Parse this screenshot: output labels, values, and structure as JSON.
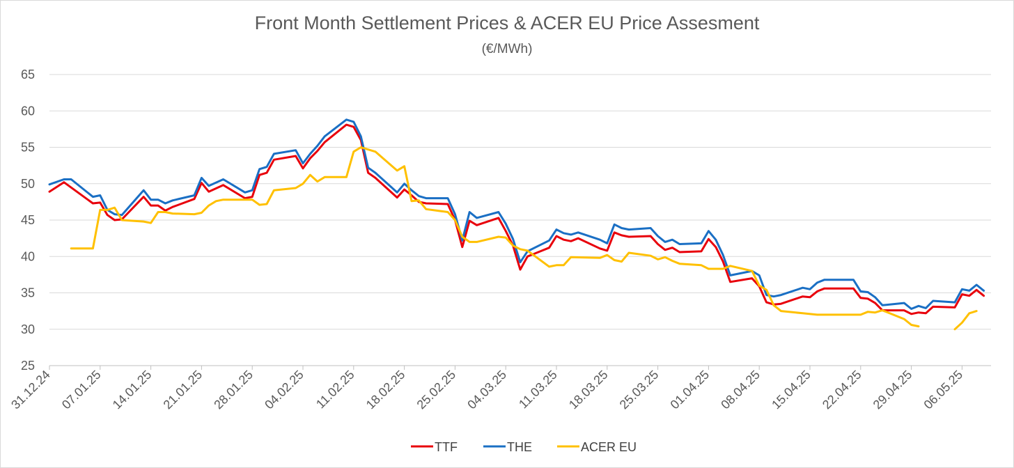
{
  "chart_data": {
    "type": "line",
    "title": "Front Month Settlement Prices & ACER EU Price Assesment",
    "subtitle": "(€/MWh)",
    "xlabel": "",
    "ylabel": "",
    "ylim": [
      25,
      65
    ],
    "yticks": [
      "25",
      "30",
      "35",
      "40",
      "45",
      "50",
      "55",
      "60",
      "65"
    ],
    "xlim": [
      "31.12.24",
      "10.05.25"
    ],
    "xticks": [
      "31.12.24",
      "07.01.25",
      "14.01.25",
      "21.01.25",
      "28.01.25",
      "04.02.25",
      "11.02.25",
      "18.02.25",
      "25.02.25",
      "04.03.25",
      "11.03.25",
      "18.03.25",
      "25.03.25",
      "01.04.25",
      "08.04.25",
      "15.04.25",
      "22.04.25",
      "29.04.25",
      "06.05.25"
    ],
    "grid": true,
    "legend_position": "bottom",
    "series": [
      {
        "name": "TTF",
        "color": "#e8000b",
        "points": [
          [
            "31.12.24",
            48.9
          ],
          [
            "02.01.25",
            50.2
          ],
          [
            "06.01.25",
            47.3
          ],
          [
            "07.01.25",
            47.4
          ],
          [
            "08.01.25",
            45.7
          ],
          [
            "09.01.25",
            45.0
          ],
          [
            "10.01.25",
            45.1
          ],
          [
            "13.01.25",
            48.2
          ],
          [
            "14.01.25",
            47.0
          ],
          [
            "15.01.25",
            47.0
          ],
          [
            "16.01.25",
            46.3
          ],
          [
            "17.01.25",
            46.8
          ],
          [
            "20.01.25",
            47.9
          ],
          [
            "21.01.25",
            50.1
          ],
          [
            "22.01.25",
            48.9
          ],
          [
            "24.01.25",
            49.8
          ],
          [
            "27.01.25",
            48.0
          ],
          [
            "28.01.25",
            48.2
          ],
          [
            "29.01.25",
            51.2
          ],
          [
            "30.01.25",
            51.5
          ],
          [
            "31.01.25",
            53.3
          ],
          [
            "03.02.25",
            53.8
          ],
          [
            "04.02.25",
            52.1
          ],
          [
            "05.02.25",
            53.5
          ],
          [
            "06.02.25",
            54.5
          ],
          [
            "07.02.25",
            55.7
          ],
          [
            "10.02.25",
            58.1
          ],
          [
            "11.02.25",
            57.8
          ],
          [
            "12.02.25",
            56.0
          ],
          [
            "13.02.25",
            51.5
          ],
          [
            "14.02.25",
            50.8
          ],
          [
            "17.02.25",
            48.1
          ],
          [
            "18.02.25",
            49.2
          ],
          [
            "19.02.25",
            48.4
          ],
          [
            "20.02.25",
            47.5
          ],
          [
            "21.02.25",
            47.3
          ],
          [
            "24.02.25",
            47.2
          ],
          [
            "25.02.25",
            45.0
          ],
          [
            "26.02.25",
            41.3
          ],
          [
            "27.02.25",
            44.9
          ],
          [
            "28.02.25",
            44.3
          ],
          [
            "03.03.25",
            45.3
          ],
          [
            "04.03.25",
            43.5
          ],
          [
            "05.03.25",
            41.5
          ],
          [
            "06.03.25",
            38.2
          ],
          [
            "07.03.25",
            40.0
          ],
          [
            "10.03.25",
            41.2
          ],
          [
            "11.03.25",
            42.8
          ],
          [
            "12.03.25",
            42.3
          ],
          [
            "13.03.25",
            42.1
          ],
          [
            "14.03.25",
            42.5
          ],
          [
            "17.03.25",
            41.1
          ],
          [
            "18.03.25",
            40.8
          ],
          [
            "19.03.25",
            43.3
          ],
          [
            "20.03.25",
            42.9
          ],
          [
            "21.03.25",
            42.7
          ],
          [
            "24.03.25",
            42.8
          ],
          [
            "25.03.25",
            41.7
          ],
          [
            "26.03.25",
            40.9
          ],
          [
            "27.03.25",
            41.2
          ],
          [
            "28.03.25",
            40.6
          ],
          [
            "31.03.25",
            40.7
          ],
          [
            "01.04.25",
            42.4
          ],
          [
            "02.04.25",
            41.3
          ],
          [
            "03.04.25",
            39.3
          ],
          [
            "04.04.25",
            36.5
          ],
          [
            "07.04.25",
            37.0
          ],
          [
            "08.04.25",
            35.9
          ],
          [
            "09.04.25",
            33.7
          ],
          [
            "10.04.25",
            33.4
          ],
          [
            "11.04.25",
            33.5
          ],
          [
            "14.04.25",
            34.5
          ],
          [
            "15.04.25",
            34.4
          ],
          [
            "16.04.25",
            35.2
          ],
          [
            "17.04.25",
            35.6
          ],
          [
            "21.04.25",
            35.6
          ],
          [
            "22.04.25",
            34.3
          ],
          [
            "23.04.25",
            34.2
          ],
          [
            "24.04.25",
            33.6
          ],
          [
            "25.04.25",
            32.6
          ],
          [
            "28.04.25",
            32.6
          ],
          [
            "29.04.25",
            32.1
          ],
          [
            "30.04.25",
            32.3
          ],
          [
            "01.05.25",
            32.2
          ],
          [
            "02.05.25",
            33.1
          ],
          [
            "05.05.25",
            33.0
          ],
          [
            "06.05.25",
            34.8
          ],
          [
            "07.05.25",
            34.6
          ],
          [
            "08.05.25",
            35.4
          ],
          [
            "09.05.25",
            34.6
          ]
        ]
      },
      {
        "name": "THE",
        "color": "#1a6fc4",
        "points": [
          [
            "31.12.24",
            49.9
          ],
          [
            "02.01.25",
            50.6
          ],
          [
            "03.01.25",
            50.6
          ],
          [
            "06.01.25",
            48.2
          ],
          [
            "07.01.25",
            48.4
          ],
          [
            "08.01.25",
            46.4
          ],
          [
            "09.01.25",
            45.8
          ],
          [
            "10.01.25",
            45.7
          ],
          [
            "13.01.25",
            49.1
          ],
          [
            "14.01.25",
            47.8
          ],
          [
            "15.01.25",
            47.8
          ],
          [
            "16.01.25",
            47.3
          ],
          [
            "17.01.25",
            47.7
          ],
          [
            "20.01.25",
            48.4
          ],
          [
            "21.01.25",
            50.8
          ],
          [
            "22.01.25",
            49.7
          ],
          [
            "24.01.25",
            50.6
          ],
          [
            "27.01.25",
            48.8
          ],
          [
            "28.01.25",
            49.1
          ],
          [
            "29.01.25",
            52.0
          ],
          [
            "30.01.25",
            52.3
          ],
          [
            "31.01.25",
            54.1
          ],
          [
            "03.02.25",
            54.6
          ],
          [
            "04.02.25",
            52.8
          ],
          [
            "05.02.25",
            54.1
          ],
          [
            "06.02.25",
            55.2
          ],
          [
            "07.02.25",
            56.5
          ],
          [
            "10.02.25",
            58.8
          ],
          [
            "11.02.25",
            58.5
          ],
          [
            "12.02.25",
            56.5
          ],
          [
            "13.02.25",
            52.2
          ],
          [
            "14.02.25",
            51.5
          ],
          [
            "17.02.25",
            48.8
          ],
          [
            "18.02.25",
            50.0
          ],
          [
            "19.02.25",
            49.1
          ],
          [
            "20.02.25",
            48.3
          ],
          [
            "21.02.25",
            48.0
          ],
          [
            "24.02.25",
            48.0
          ],
          [
            "25.02.25",
            45.8
          ],
          [
            "26.02.25",
            42.2
          ],
          [
            "27.02.25",
            46.1
          ],
          [
            "28.02.25",
            45.3
          ],
          [
            "03.03.25",
            46.1
          ],
          [
            "04.03.25",
            44.5
          ],
          [
            "05.03.25",
            42.4
          ],
          [
            "06.03.25",
            39.2
          ],
          [
            "07.03.25",
            40.7
          ],
          [
            "10.03.25",
            42.2
          ],
          [
            "11.03.25",
            43.7
          ],
          [
            "12.03.25",
            43.2
          ],
          [
            "13.03.25",
            43.0
          ],
          [
            "14.03.25",
            43.3
          ],
          [
            "17.03.25",
            42.3
          ],
          [
            "18.03.25",
            41.8
          ],
          [
            "19.03.25",
            44.4
          ],
          [
            "20.03.25",
            43.9
          ],
          [
            "21.03.25",
            43.7
          ],
          [
            "24.03.25",
            43.9
          ],
          [
            "25.03.25",
            42.8
          ],
          [
            "26.03.25",
            42.0
          ],
          [
            "27.03.25",
            42.3
          ],
          [
            "28.03.25",
            41.7
          ],
          [
            "31.03.25",
            41.8
          ],
          [
            "01.04.25",
            43.5
          ],
          [
            "02.04.25",
            42.3
          ],
          [
            "03.04.25",
            40.2
          ],
          [
            "04.04.25",
            37.4
          ],
          [
            "07.04.25",
            38.0
          ],
          [
            "08.04.25",
            37.4
          ],
          [
            "09.04.25",
            34.7
          ],
          [
            "10.04.25",
            34.5
          ],
          [
            "11.04.25",
            34.7
          ],
          [
            "14.04.25",
            35.7
          ],
          [
            "15.04.25",
            35.5
          ],
          [
            "16.04.25",
            36.4
          ],
          [
            "17.04.25",
            36.8
          ],
          [
            "21.04.25",
            36.8
          ],
          [
            "22.04.25",
            35.2
          ],
          [
            "23.04.25",
            35.1
          ],
          [
            "24.04.25",
            34.4
          ],
          [
            "25.04.25",
            33.3
          ],
          [
            "28.04.25",
            33.6
          ],
          [
            "29.04.25",
            32.8
          ],
          [
            "30.04.25",
            33.2
          ],
          [
            "01.05.25",
            32.9
          ],
          [
            "02.05.25",
            33.9
          ],
          [
            "05.05.25",
            33.7
          ],
          [
            "06.05.25",
            35.5
          ],
          [
            "07.05.25",
            35.3
          ],
          [
            "08.05.25",
            36.1
          ],
          [
            "09.05.25",
            35.3
          ]
        ]
      },
      {
        "name": "ACER EU",
        "color": "#ffc000",
        "points": [
          [
            "03.01.25",
            41.1
          ],
          [
            "06.01.25",
            41.1
          ],
          [
            "07.01.25",
            46.4
          ],
          [
            "08.01.25",
            46.4
          ],
          [
            "09.01.25",
            46.7
          ],
          [
            "10.01.25",
            45.0
          ],
          [
            "13.01.25",
            44.8
          ],
          [
            "14.01.25",
            44.6
          ],
          [
            "15.01.25",
            46.1
          ],
          [
            "16.01.25",
            46.1
          ],
          [
            "17.01.25",
            45.9
          ],
          [
            "20.01.25",
            45.8
          ],
          [
            "21.01.25",
            46.0
          ],
          [
            "22.01.25",
            47.0
          ],
          [
            "23.01.25",
            47.6
          ],
          [
            "24.01.25",
            47.8
          ],
          [
            "27.01.25",
            47.8
          ],
          [
            "28.01.25",
            47.8
          ],
          [
            "29.01.25",
            47.1
          ],
          [
            "30.01.25",
            47.2
          ],
          [
            "31.01.25",
            49.1
          ],
          [
            "03.02.25",
            49.4
          ],
          [
            "04.02.25",
            50.0
          ],
          [
            "05.02.25",
            51.2
          ],
          [
            "06.02.25",
            50.3
          ],
          [
            "07.02.25",
            50.9
          ],
          [
            "10.02.25",
            50.9
          ],
          [
            "11.02.25",
            54.4
          ],
          [
            "12.02.25",
            55.0
          ],
          [
            "14.02.25",
            54.4
          ],
          [
            "17.02.25",
            51.8
          ],
          [
            "18.02.25",
            52.4
          ],
          [
            "19.02.25",
            47.6
          ],
          [
            "20.02.25",
            47.7
          ],
          [
            "21.02.25",
            46.5
          ],
          [
            "24.02.25",
            46.1
          ],
          [
            "25.02.25",
            45.0
          ],
          [
            "26.02.25",
            42.7
          ],
          [
            "27.02.25",
            42.0
          ],
          [
            "28.02.25",
            42.0
          ],
          [
            "03.03.25",
            42.7
          ],
          [
            "04.03.25",
            42.6
          ],
          [
            "05.03.25",
            41.5
          ],
          [
            "06.03.25",
            41.0
          ],
          [
            "07.03.25",
            40.8
          ],
          [
            "10.03.25",
            38.6
          ],
          [
            "11.03.25",
            38.8
          ],
          [
            "12.03.25",
            38.8
          ],
          [
            "13.03.25",
            39.9
          ],
          [
            "17.03.25",
            39.8
          ],
          [
            "18.03.25",
            40.2
          ],
          [
            "19.03.25",
            39.5
          ],
          [
            "20.03.25",
            39.3
          ],
          [
            "21.03.25",
            40.5
          ],
          [
            "24.03.25",
            40.1
          ],
          [
            "25.03.25",
            39.6
          ],
          [
            "26.03.25",
            39.9
          ],
          [
            "27.03.25",
            39.4
          ],
          [
            "28.03.25",
            39.0
          ],
          [
            "31.03.25",
            38.8
          ],
          [
            "01.04.25",
            38.3
          ],
          [
            "03.04.25",
            38.3
          ],
          [
            "04.04.25",
            38.7
          ],
          [
            "07.04.25",
            38.0
          ],
          [
            "08.04.25",
            36.0
          ],
          [
            "09.04.25",
            35.4
          ],
          [
            "10.04.25",
            33.3
          ],
          [
            "11.04.25",
            32.5
          ],
          [
            "14.04.25",
            32.2
          ],
          [
            "16.04.25",
            32.0
          ],
          [
            "21.04.25",
            32.0
          ],
          [
            "22.04.25",
            32.0
          ],
          [
            "23.04.25",
            32.4
          ],
          [
            "24.04.25",
            32.3
          ],
          [
            "25.04.25",
            32.6
          ],
          [
            "28.04.25",
            31.4
          ],
          [
            "29.04.25",
            30.6
          ],
          [
            "30.04.25",
            30.4
          ],
          [
            null,
            null
          ],
          [
            "05.05.25",
            30.0
          ],
          [
            "06.05.25",
            30.9
          ],
          [
            "07.05.25",
            32.2
          ],
          [
            "08.05.25",
            32.5
          ]
        ]
      }
    ]
  }
}
